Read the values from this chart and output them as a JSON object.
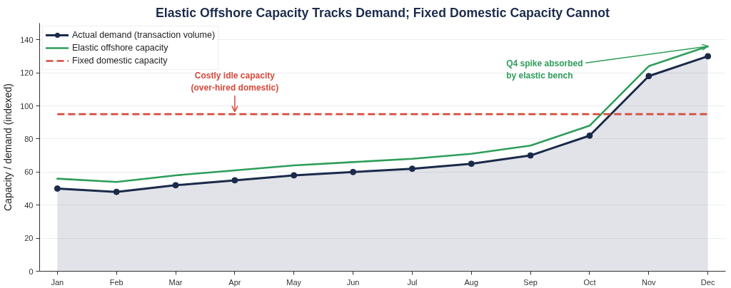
{
  "chart_data": {
    "type": "line",
    "title": "Elastic Offshore Capacity Tracks Demand; Fixed Domestic Capacity Cannot",
    "ylabel": "Capacity / demand (indexed)",
    "categories": [
      "Jan",
      "Feb",
      "Mar",
      "Apr",
      "May",
      "Jun",
      "Jul",
      "Aug",
      "Sep",
      "Oct",
      "Nov",
      "Dec"
    ],
    "ylim": [
      0,
      150
    ],
    "yticks": [
      0,
      20,
      40,
      60,
      80,
      100,
      120,
      140
    ],
    "grid": "y",
    "legend": "top left",
    "series": [
      {
        "name": "Actual demand (transaction volume)",
        "type": "area",
        "color": "#1b2a4a",
        "marker": "circle",
        "values": [
          50,
          48,
          52,
          55,
          58,
          60,
          62,
          65,
          70,
          82,
          118,
          130
        ]
      },
      {
        "name": "Elastic offshore capacity",
        "color": "#2e9e5a",
        "values": [
          56,
          54,
          58,
          61,
          64,
          66,
          68,
          71,
          76,
          88,
          124,
          136
        ]
      },
      {
        "name": "Fixed domestic capacity",
        "color": "#d64a3b",
        "line_style": "dashed",
        "values": [
          95,
          95,
          95,
          95,
          95,
          95,
          95,
          95,
          95,
          95,
          95,
          95
        ]
      }
    ],
    "annotations": [
      {
        "text": "Costly idle capacity\n(over-hired domestic)",
        "x": "Apr",
        "y": 95
      },
      {
        "text": "Q4 spike absorbed\nby elastic bench",
        "x": "Dec",
        "y": 136
      }
    ]
  }
}
